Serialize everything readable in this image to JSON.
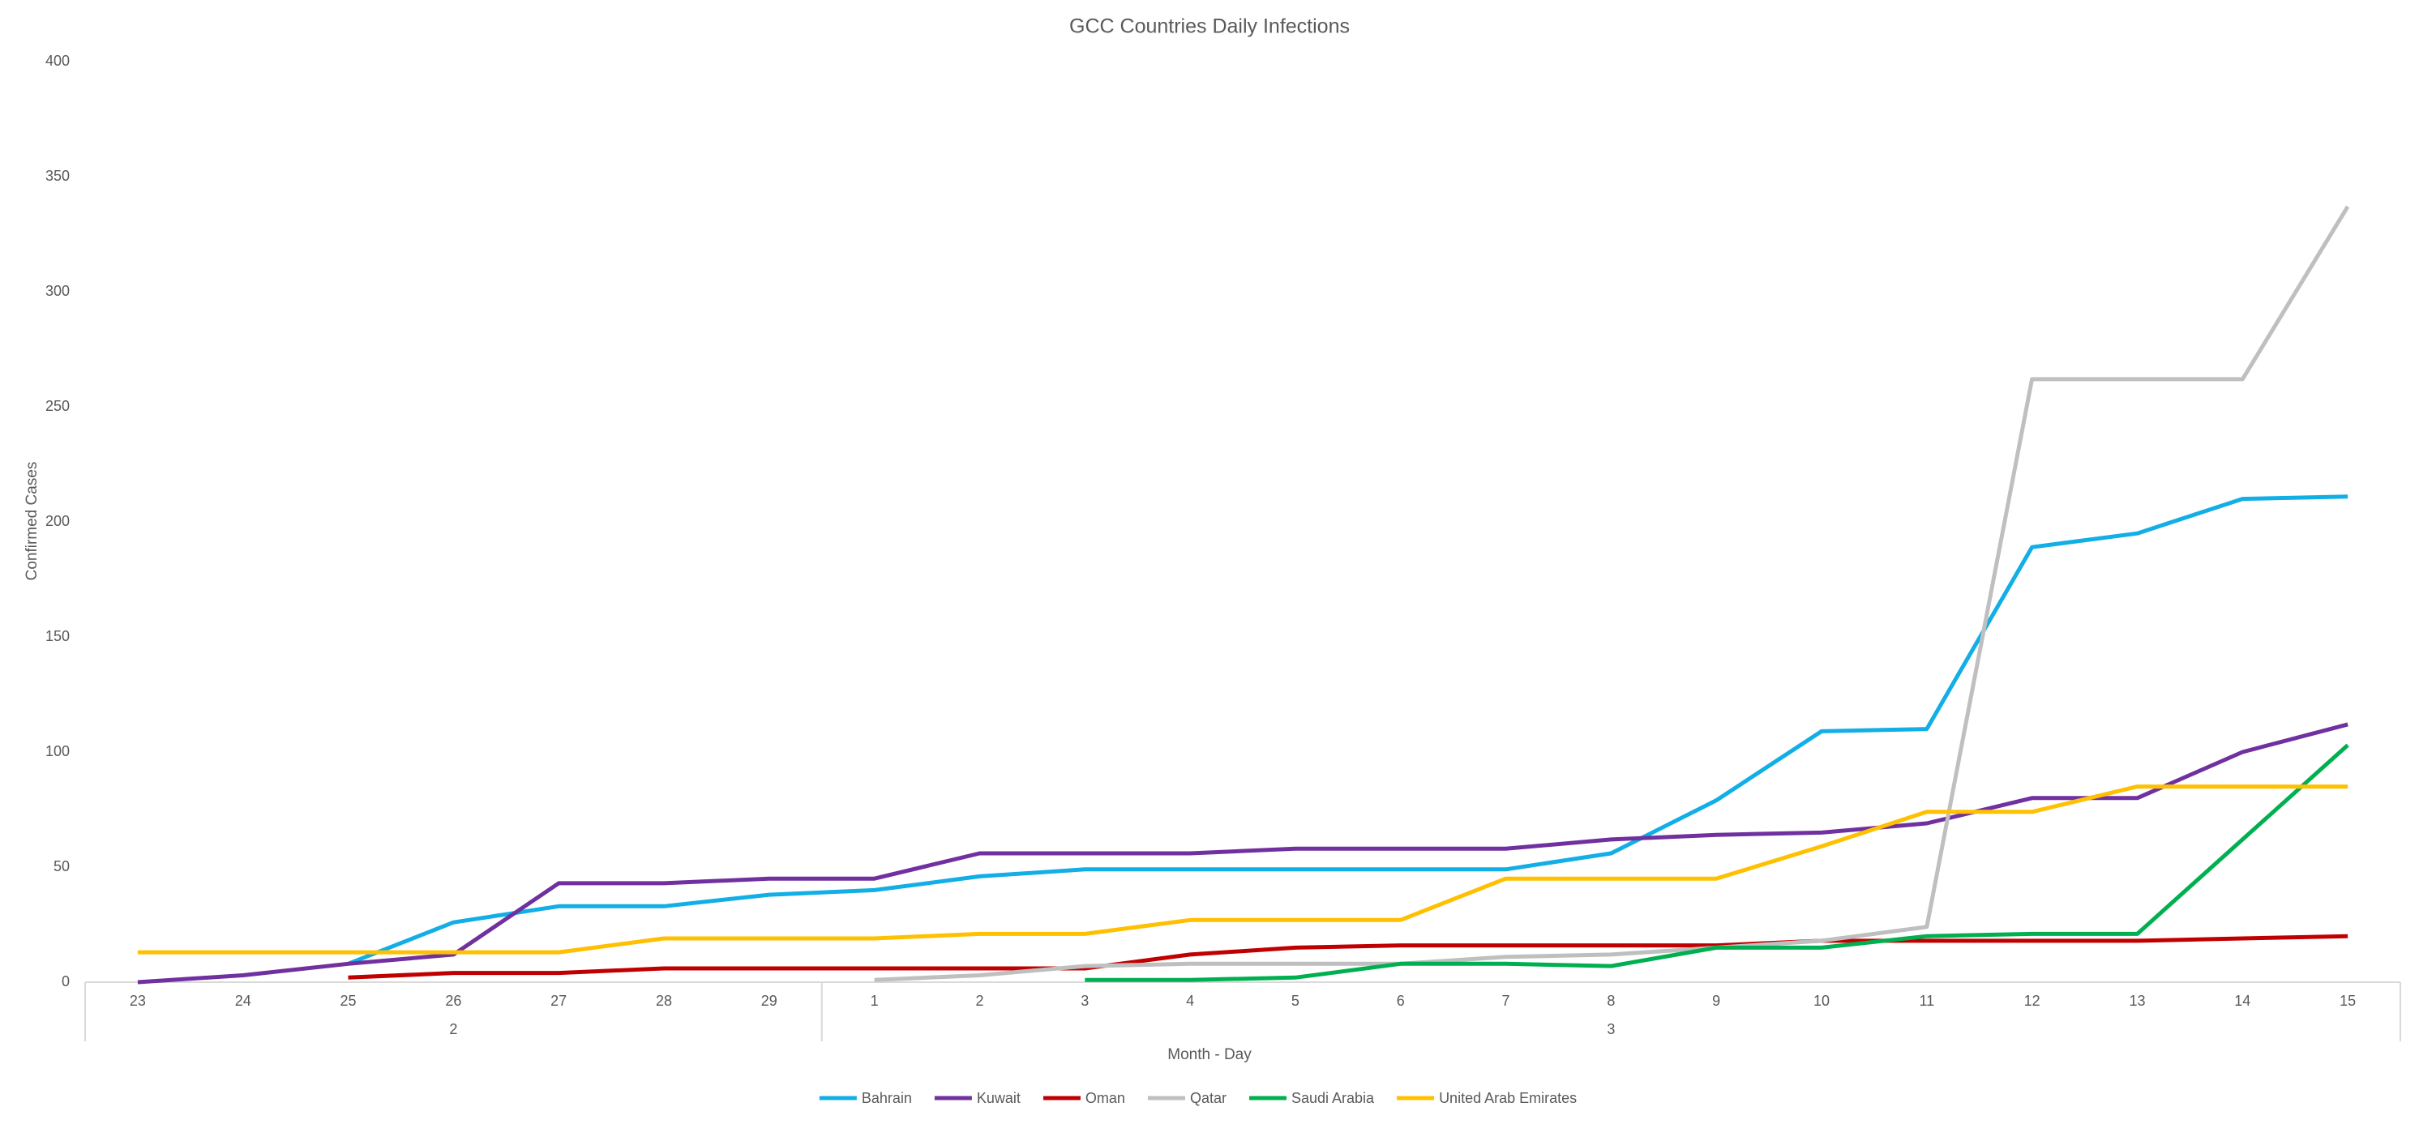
{
  "chart_data": {
    "type": "line",
    "title": "GCC Countries Daily Infections",
    "x_label": "Month - Day",
    "y_label": "Confirmed Cases",
    "categories": [
      "23",
      "24",
      "25",
      "26",
      "27",
      "28",
      "29",
      "1",
      "2",
      "3",
      "4",
      "5",
      "6",
      "7",
      "8",
      "9",
      "10",
      "11",
      "12",
      "13",
      "14",
      "15"
    ],
    "category_groups": [
      "2",
      "2",
      "2",
      "2",
      "2",
      "2",
      "2",
      "3",
      "3",
      "3",
      "3",
      "3",
      "3",
      "3",
      "3",
      "3",
      "3",
      "3",
      "3",
      "3",
      "3",
      "3"
    ],
    "ylim": [
      0,
      400
    ],
    "yticks": [
      0,
      50,
      100,
      150,
      200,
      250,
      300,
      350,
      400
    ],
    "grid": false,
    "legend": "bottom",
    "series": [
      {
        "name": "Bahrain",
        "color": "#12aee6",
        "values": [
          null,
          null,
          8,
          26,
          33,
          33,
          38,
          40,
          46,
          49,
          49,
          49,
          49,
          49,
          56,
          79,
          109,
          110,
          189,
          195,
          210,
          211
        ]
      },
      {
        "name": "Kuwait",
        "color": "#7030a0",
        "values": [
          0,
          3,
          8,
          12,
          43,
          43,
          45,
          45,
          56,
          56,
          56,
          58,
          58,
          58,
          62,
          64,
          65,
          69,
          80,
          80,
          100,
          112
        ]
      },
      {
        "name": "Oman",
        "color": "#c00000",
        "values": [
          null,
          null,
          2,
          4,
          4,
          6,
          6,
          6,
          6,
          6,
          12,
          15,
          16,
          16,
          16,
          16,
          18,
          18,
          18,
          18,
          19,
          20
        ]
      },
      {
        "name": "Qatar",
        "color": "#bfbfbf",
        "values": [
          null,
          null,
          null,
          null,
          null,
          null,
          null,
          1,
          3,
          7,
          8,
          8,
          8,
          11,
          12,
          15,
          18,
          24,
          262,
          262,
          262,
          337
        ]
      },
      {
        "name": "Saudi Arabia",
        "color": "#00b050",
        "values": [
          null,
          null,
          null,
          null,
          null,
          null,
          null,
          null,
          null,
          1,
          1,
          2,
          8,
          8,
          7,
          15,
          15,
          20,
          21,
          21,
          62,
          103
        ]
      },
      {
        "name": "United Arab Emirates",
        "color": "#ffc000",
        "values": [
          13,
          13,
          13,
          13,
          13,
          19,
          19,
          19,
          21,
          21,
          27,
          27,
          27,
          45,
          45,
          45,
          59,
          74,
          74,
          85,
          85,
          85
        ]
      }
    ]
  }
}
